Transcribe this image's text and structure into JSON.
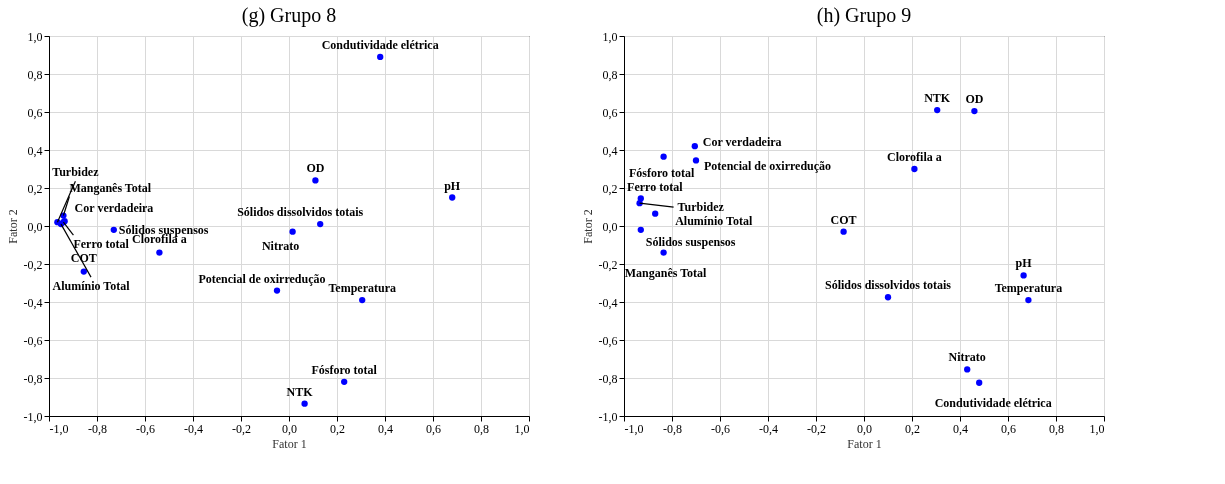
{
  "chart_data": [
    {
      "type": "scatter",
      "title": "(g) Grupo 8",
      "xlabel": "Fator 1",
      "ylabel": "Fator 2",
      "xlim": [
        -1.0,
        1.0
      ],
      "ylim": [
        -1.0,
        1.0
      ],
      "xticks": [
        {
          "value": -1.0,
          "label": "-1,0"
        },
        {
          "value": -0.8,
          "label": "-0,8"
        },
        {
          "value": -0.6,
          "label": "-0,6"
        },
        {
          "value": -0.4,
          "label": "-0,4"
        },
        {
          "value": -0.2,
          "label": "-0,2"
        },
        {
          "value": 0.0,
          "label": "0,0"
        },
        {
          "value": 0.2,
          "label": "0,2"
        },
        {
          "value": 0.4,
          "label": "0,4"
        },
        {
          "value": 0.6,
          "label": "0,6"
        },
        {
          "value": 0.8,
          "label": "0,8"
        },
        {
          "value": 1.0,
          "label": "1,0"
        }
      ],
      "yticks": [
        {
          "value": -1.0,
          "label": "-1,0"
        },
        {
          "value": -0.8,
          "label": "-0,8"
        },
        {
          "value": -0.6,
          "label": "-0,6"
        },
        {
          "value": -0.4,
          "label": "-0,4"
        },
        {
          "value": -0.2,
          "label": "-0,2"
        },
        {
          "value": 0.0,
          "label": "0,0"
        },
        {
          "value": 0.2,
          "label": "0,2"
        },
        {
          "value": 0.4,
          "label": "0,4"
        },
        {
          "value": 0.6,
          "label": "0,6"
        },
        {
          "value": 0.8,
          "label": "0,8"
        },
        {
          "value": 1.0,
          "label": "1,0"
        }
      ],
      "grid": true,
      "marker": "circle",
      "series": [
        {
          "color": "#0000ff",
          "x": [
            0.38,
            0.11,
            0.68,
            0.13,
            0.015,
            -0.05,
            0.305,
            0.23,
            0.065,
            -0.73,
            -0.54,
            -0.855,
            -0.965,
            -0.94,
            -0.935,
            -0.94,
            -0.95
          ],
          "values": [
            0.89,
            0.24,
            0.15,
            0.01,
            -0.03,
            -0.34,
            -0.39,
            -0.82,
            -0.935,
            -0.02,
            -0.14,
            -0.24,
            0.02,
            0.055,
            0.025,
            0.02,
            0.01
          ]
        }
      ],
      "annotations": [
        {
          "text": "Condutividade elétrica",
          "x": 0.38,
          "y": 0.89
        },
        {
          "text": "OD",
          "x": 0.11,
          "y": 0.24
        },
        {
          "text": "pH",
          "x": 0.68,
          "y": 0.15
        },
        {
          "text": "Sólidos dissolvidos totais",
          "x": 0.13,
          "y": 0.01
        },
        {
          "text": "Nitrato",
          "x": 0.015,
          "y": -0.03
        },
        {
          "text": "Potencial de oxirredução",
          "x": -0.05,
          "y": -0.34
        },
        {
          "text": "Temperatura",
          "x": 0.305,
          "y": -0.39
        },
        {
          "text": "Fósforo total",
          "x": 0.23,
          "y": -0.82
        },
        {
          "text": "NTK",
          "x": 0.065,
          "y": -0.935
        },
        {
          "text": "Sólidos suspensos",
          "x": -0.73,
          "y": -0.02
        },
        {
          "text": "Clorofila a",
          "x": -0.54,
          "y": -0.14
        },
        {
          "text": "COT",
          "x": -0.855,
          "y": -0.24
        },
        {
          "text": "Turbidez",
          "x": -0.965,
          "y": 0.02
        },
        {
          "text": "Manganês Total",
          "x": -0.94,
          "y": 0.055
        },
        {
          "text": "Cor verdadeira",
          "x": -0.935,
          "y": 0.025
        },
        {
          "text": "Ferro total",
          "x": -0.94,
          "y": 0.02
        },
        {
          "text": "Alumínio Total",
          "x": -0.95,
          "y": 0.01
        }
      ]
    },
    {
      "type": "scatter",
      "title": "(h) Grupo 9",
      "xlabel": "Fator 1",
      "ylabel": "Fator 2",
      "xlim": [
        -1.0,
        1.0
      ],
      "ylim": [
        -1.0,
        1.0
      ],
      "xticks": [
        {
          "value": -1.0,
          "label": "-1,0"
        },
        {
          "value": -0.8,
          "label": "-0,8"
        },
        {
          "value": -0.6,
          "label": "-0,6"
        },
        {
          "value": -0.4,
          "label": "-0,4"
        },
        {
          "value": -0.2,
          "label": "-0,2"
        },
        {
          "value": 0.0,
          "label": "0,0"
        },
        {
          "value": 0.2,
          "label": "0,2"
        },
        {
          "value": 0.4,
          "label": "0,4"
        },
        {
          "value": 0.6,
          "label": "0,6"
        },
        {
          "value": 0.8,
          "label": "0,8"
        },
        {
          "value": 1.0,
          "label": "1,0"
        }
      ],
      "yticks": [
        {
          "value": -1.0,
          "label": "-1,0"
        },
        {
          "value": -0.8,
          "label": "-0,8"
        },
        {
          "value": -0.6,
          "label": "-0,6"
        },
        {
          "value": -0.4,
          "label": "-0,4"
        },
        {
          "value": -0.2,
          "label": "-0,2"
        },
        {
          "value": 0.0,
          "label": "0,0"
        },
        {
          "value": 0.2,
          "label": "0,2"
        },
        {
          "value": 0.4,
          "label": "0,4"
        },
        {
          "value": 0.6,
          "label": "0,6"
        },
        {
          "value": 0.8,
          "label": "0,8"
        },
        {
          "value": 1.0,
          "label": "1,0"
        }
      ],
      "grid": true,
      "marker": "circle",
      "series": [
        {
          "color": "#0000ff",
          "x": [
            0.305,
            0.46,
            -0.705,
            -0.7,
            -0.835,
            0.21,
            -0.93,
            -0.935,
            -0.87,
            -0.085,
            -0.93,
            -0.835,
            0.665,
            0.685,
            0.1,
            0.43,
            0.48
          ],
          "values": [
            0.61,
            0.605,
            0.42,
            0.345,
            0.365,
            0.3,
            0.145,
            0.12,
            0.065,
            -0.03,
            -0.02,
            -0.14,
            -0.26,
            -0.39,
            -0.375,
            -0.755,
            -0.825
          ]
        }
      ],
      "annotations": [
        {
          "text": "NTK",
          "x": 0.305,
          "y": 0.61
        },
        {
          "text": "OD",
          "x": 0.46,
          "y": 0.605
        },
        {
          "text": "Cor verdadeira",
          "x": -0.705,
          "y": 0.42
        },
        {
          "text": "Potencial de oxirredução",
          "x": -0.7,
          "y": 0.345
        },
        {
          "text": "Fósforo total",
          "x": -0.835,
          "y": 0.365
        },
        {
          "text": "Clorofila a",
          "x": 0.21,
          "y": 0.3
        },
        {
          "text": "Ferro total",
          "x": -0.93,
          "y": 0.145
        },
        {
          "text": "Turbidez",
          "x": -0.935,
          "y": 0.12
        },
        {
          "text": "Alumínio Total",
          "x": -0.87,
          "y": 0.065
        },
        {
          "text": "COT",
          "x": -0.085,
          "y": -0.03
        },
        {
          "text": "Sólidos suspensos",
          "x": -0.93,
          "y": -0.02
        },
        {
          "text": "Manganês Total",
          "x": -0.835,
          "y": -0.14
        },
        {
          "text": "pH",
          "x": 0.665,
          "y": -0.26
        },
        {
          "text": "Temperatura",
          "x": 0.685,
          "y": -0.39
        },
        {
          "text": "Sólidos dissolvidos totais",
          "x": 0.1,
          "y": -0.375
        },
        {
          "text": "Nitrato",
          "x": 0.43,
          "y": -0.755
        },
        {
          "text": "Condutividade elétrica",
          "x": 0.48,
          "y": -0.825
        }
      ]
    }
  ]
}
